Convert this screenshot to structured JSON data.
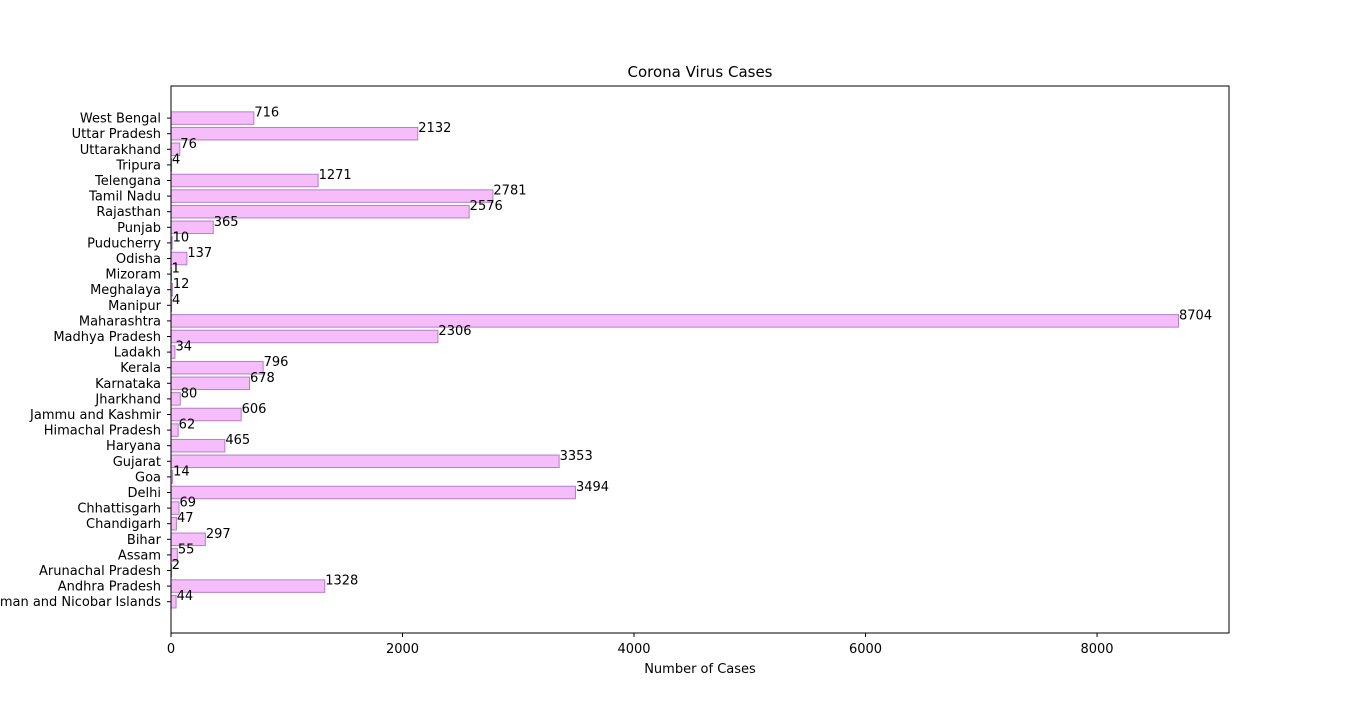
{
  "chart_data": {
    "type": "bar",
    "orientation": "horizontal",
    "title": "Corona Virus Cases",
    "xlabel": "Number of Cases",
    "ylabel": "",
    "xlim": [
      0,
      9140
    ],
    "xticks": [
      0,
      2000,
      4000,
      6000,
      8000
    ],
    "grid": false,
    "bar_fill": "#f5bdfa",
    "bar_edge": "#b77ccc",
    "categories": [
      "Andaman and Nicobar Islands",
      "Andhra Pradesh",
      "Arunachal Pradesh",
      "Assam",
      "Bihar",
      "Chandigarh",
      "Chhattisgarh",
      "Delhi",
      "Goa",
      "Gujarat",
      "Haryana",
      "Himachal Pradesh",
      "Jammu and Kashmir",
      "Jharkhand",
      "Karnataka",
      "Kerala",
      "Ladakh",
      "Madhya Pradesh",
      "Maharashtra",
      "Manipur",
      "Meghalaya",
      "Mizoram",
      "Odisha",
      "Puducherry",
      "Punjab",
      "Rajasthan",
      "Tamil Nadu",
      "Telengana",
      "Tripura",
      "Uttarakhand",
      "Uttar Pradesh",
      "West Bengal"
    ],
    "values": [
      44,
      1328,
      2,
      55,
      297,
      47,
      69,
      3494,
      14,
      3353,
      465,
      62,
      606,
      80,
      678,
      796,
      34,
      2306,
      8704,
      4,
      12,
      1,
      137,
      10,
      365,
      2576,
      2781,
      1271,
      4,
      76,
      2132,
      716
    ]
  }
}
